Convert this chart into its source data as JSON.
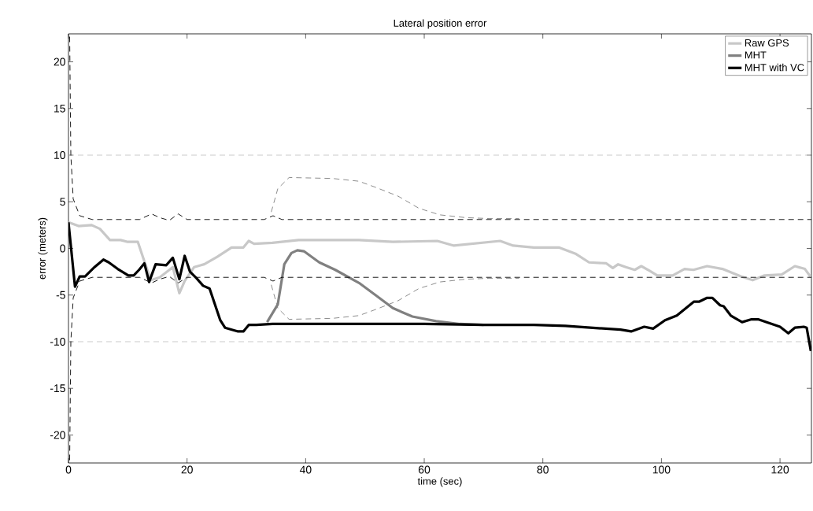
{
  "chart_data": {
    "type": "line",
    "title": "Lateral position error",
    "xlabel": "time (sec)",
    "ylabel": "error (meters)",
    "xlim": [
      0,
      125.3
    ],
    "ylim": [
      -23,
      23
    ],
    "xticks": [
      0,
      20,
      40,
      60,
      80,
      100,
      120
    ],
    "yticks": [
      -20,
      -15,
      -10,
      -5,
      0,
      5,
      10,
      15,
      20
    ],
    "grid": false,
    "legend": "top right",
    "marker": "none",
    "ref_lines": [
      {
        "axis": "y",
        "value": 10,
        "color": "#cccccc",
        "line_style": "dashed"
      },
      {
        "axis": "y",
        "value": -10,
        "color": "#cccccc",
        "line_style": "dashed"
      }
    ],
    "series": [
      {
        "name": "Raw GPS",
        "color": "#c8c8c8",
        "line_style": "solid",
        "x": [
          0,
          1.7,
          3.9,
          5.3,
          7,
          8.8,
          10,
          11.7,
          12.7,
          13.9,
          15.4,
          17.6,
          18.7,
          19.6,
          21.2,
          22.9,
          25.1,
          27.5,
          29.5,
          30.4,
          31.3,
          34.4,
          38.8,
          44.5,
          49,
          54.7,
          62.2,
          65,
          72.8,
          75,
          78.5,
          82.7,
          85.6,
          87.8,
          90.7,
          91.8,
          92.7,
          94,
          95.5,
          96.6,
          98,
          99.3,
          101.9,
          103.9,
          105.4,
          107.7,
          110.3,
          113.4,
          115.4,
          117.4,
          120.3,
          122.5,
          124.2,
          125.1
        ],
        "values": [
          2.8,
          2.4,
          2.5,
          2.1,
          0.9,
          0.9,
          0.7,
          0.7,
          -1.2,
          -3.4,
          -3.1,
          -2.0,
          -4.8,
          -3.5,
          -2.0,
          -1.7,
          -0.9,
          0.1,
          0.1,
          0.8,
          0.5,
          0.6,
          0.9,
          0.9,
          0.9,
          0.7,
          0.8,
          0.3,
          0.8,
          0.3,
          0.1,
          0.1,
          -0.6,
          -1.5,
          -1.6,
          -2.1,
          -1.7,
          -2.0,
          -2.3,
          -1.9,
          -2.4,
          -2.9,
          -2.9,
          -2.2,
          -2.3,
          -1.9,
          -2.2,
          -3.0,
          -3.4,
          -2.9,
          -2.8,
          -1.9,
          -2.2,
          -3.0
        ]
      },
      {
        "name": "MHT",
        "color": "#808080",
        "line_style": "solid",
        "x": [
          33.5,
          35.3,
          36.4,
          37.6,
          38.6,
          39.7,
          42.3,
          45,
          49,
          52,
          54.7,
          58,
          62,
          66,
          70
        ],
        "values": [
          -7.9,
          -6.0,
          -1.7,
          -0.5,
          -0.2,
          -0.3,
          -1.5,
          -2.3,
          -3.7,
          -5.1,
          -6.4,
          -7.3,
          -7.8,
          -8.1,
          -8.2
        ]
      },
      {
        "name": "MHT with VC",
        "color": "#000000",
        "line_style": "solid",
        "x": [
          0,
          1.1,
          1.9,
          2.8,
          4.4,
          5.9,
          6.8,
          8.3,
          10.1,
          11,
          11.9,
          12.8,
          13.6,
          14.7,
          16.5,
          17.6,
          18.7,
          19.6,
          20.5,
          21.6,
          22.7,
          23.8,
          25.6,
          26.4,
          28.6,
          29.5,
          30.4,
          31.7,
          34.4,
          45,
          60,
          70,
          78.5,
          83.8,
          88,
          93.1,
          94.9,
          97.1,
          98.6,
          100.6,
          102.6,
          105.5,
          106.4,
          107.7,
          108.6,
          109.9,
          110.5,
          111.7,
          112.5,
          113.6,
          115.2,
          116.3,
          120,
          121.4,
          122.5,
          124,
          124.5,
          125.2
        ],
        "values": [
          2.8,
          -4.1,
          -3.0,
          -3.0,
          -2.0,
          -1.2,
          -1.5,
          -2.2,
          -2.9,
          -2.9,
          -2.3,
          -1.6,
          -3.6,
          -1.7,
          -1.8,
          -1.0,
          -3.3,
          -0.8,
          -2.5,
          -3.2,
          -4.0,
          -4.3,
          -7.7,
          -8.5,
          -8.9,
          -8.9,
          -8.2,
          -8.2,
          -8.1,
          -8.1,
          -8.1,
          -8.2,
          -8.2,
          -8.3,
          -8.5,
          -8.7,
          -8.9,
          -8.4,
          -8.6,
          -7.7,
          -7.2,
          -5.7,
          -5.7,
          -5.3,
          -5.3,
          -6.1,
          -6.2,
          -7.2,
          -7.5,
          -7.9,
          -7.6,
          -7.6,
          -8.4,
          -9.1,
          -8.5,
          -8.4,
          -8.5,
          -11.0
        ]
      },
      {
        "color": "#000000",
        "line_style": "dashed",
        "x": [
          0.2,
          0.4,
          0.8,
          1.9,
          4,
          12,
          14,
          15.4,
          17,
          18.5,
          20,
          33,
          34.5,
          36,
          125.3
        ],
        "values": [
          22.7,
          10,
          5.3,
          3.5,
          3.1,
          3.1,
          3.7,
          3.3,
          3.0,
          3.7,
          3.1,
          3.1,
          3.5,
          3.1,
          3.1
        ]
      },
      {
        "color": "#000000",
        "line_style": "dashed",
        "x": [
          0.2,
          0.4,
          0.8,
          1.9,
          4,
          12,
          14,
          15.4,
          17,
          18.5,
          20,
          33,
          34.5,
          36,
          125.3
        ],
        "values": [
          -22.7,
          -10,
          -5.3,
          -3.5,
          -3.1,
          -3.1,
          -3.7,
          -3.3,
          -3.0,
          -3.7,
          -3.1,
          -3.1,
          -3.5,
          -3.1,
          -3.1
        ]
      },
      {
        "color": "#808080",
        "line_style": "dashed",
        "x": [
          34.2,
          35.3,
          37.2,
          44.5,
          49,
          52,
          55.6,
          59.1,
          62.6,
          67,
          71,
          76
        ],
        "values": [
          3.9,
          6.4,
          7.6,
          7.5,
          7.2,
          6.5,
          5.6,
          4.3,
          3.6,
          3.3,
          3.2,
          3.2
        ]
      },
      {
        "color": "#808080",
        "line_style": "dashed",
        "x": [
          34.2,
          35.3,
          37.2,
          44.5,
          49,
          52,
          55.6,
          59.1,
          62.6,
          67,
          71,
          76
        ],
        "values": [
          -3.9,
          -6.4,
          -7.6,
          -7.5,
          -7.2,
          -6.5,
          -5.6,
          -4.3,
          -3.6,
          -3.3,
          -3.2,
          -3.2
        ]
      }
    ]
  }
}
